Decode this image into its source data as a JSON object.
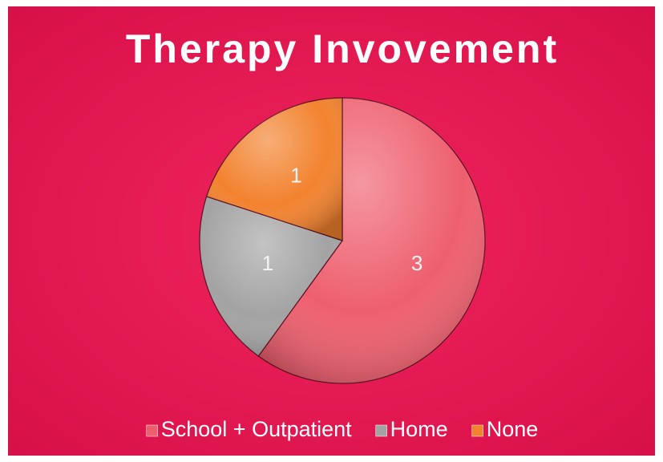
{
  "chart_data": {
    "type": "pie",
    "title": "Therapy Invovement",
    "categories": [
      "School + Outpatient",
      "Home",
      "None"
    ],
    "values": [
      3,
      1,
      1
    ],
    "colors": [
      "#ee5f6e",
      "#a3a3a3",
      "#f2822e"
    ]
  }
}
